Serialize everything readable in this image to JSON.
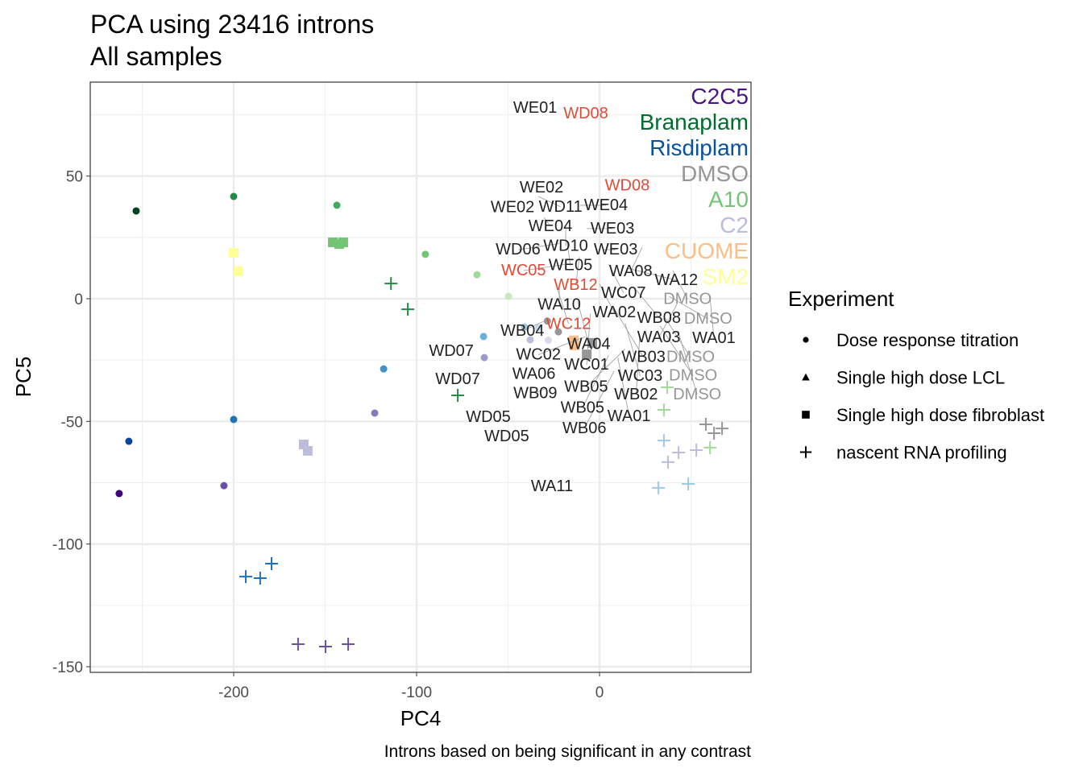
{
  "chart_data": {
    "type": "scatter",
    "title": "PCA using 23416 introns",
    "subtitle": "All samples",
    "caption": "Introns based on being significant in any contrast",
    "xlabel": "PC4",
    "ylabel": "PC5",
    "xlim": [
      -278.4,
      82.8
    ],
    "ylim": [
      -152.3,
      88.3
    ],
    "xticks": [
      -200,
      -100,
      0
    ],
    "yticks": [
      50,
      0,
      -50,
      -100,
      -150
    ],
    "grid": true,
    "legend": {
      "title": "Experiment",
      "placement": "right",
      "entries": [
        {
          "label": "Dose response titration",
          "shape": "circle"
        },
        {
          "label": "Single high dose LCL",
          "shape": "triangle"
        },
        {
          "label": "Single high dose fibroblast",
          "shape": "square"
        },
        {
          "label": "nascent RNA profiling",
          "shape": "plus"
        }
      ]
    },
    "treatment_annotations": [
      {
        "label": "C2C5",
        "color": "#4a1486"
      },
      {
        "label": "Branaplam",
        "color": "#006d2c"
      },
      {
        "label": "Risdiplam",
        "color": "#08519c"
      },
      {
        "label": "DMSO",
        "color": "#969696"
      },
      {
        "label": "A10",
        "color": "#74c476"
      },
      {
        "label": "C2",
        "color": "#bcbddc"
      },
      {
        "label": "CUOME",
        "color": "#fdbe85"
      },
      {
        "label": "SM2",
        "color": "#ffff99"
      }
    ],
    "points": [
      {
        "x": -253.3,
        "y": 35.8,
        "shape": "circle",
        "color": "#00441b"
      },
      {
        "x": -200,
        "y": 41.7,
        "shape": "circle",
        "color": "#238b45"
      },
      {
        "x": -143.6,
        "y": 38.1,
        "shape": "circle",
        "color": "#41ab5d"
      },
      {
        "x": -95.2,
        "y": 18.1,
        "shape": "circle",
        "color": "#74c476"
      },
      {
        "x": -67,
        "y": 9.8,
        "shape": "circle",
        "color": "#a1d99b"
      },
      {
        "x": -49.8,
        "y": 1,
        "shape": "circle",
        "color": "#c7e9c0"
      },
      {
        "x": -262.6,
        "y": -79.4,
        "shape": "circle",
        "color": "#3f007d"
      },
      {
        "x": -257.3,
        "y": -58.1,
        "shape": "circle",
        "color": "#08459c"
      },
      {
        "x": -200,
        "y": -49.2,
        "shape": "circle",
        "color": "#2171b5"
      },
      {
        "x": -205.3,
        "y": -76.2,
        "shape": "circle",
        "color": "#6a51a3"
      },
      {
        "x": -118,
        "y": -28.6,
        "shape": "circle",
        "color": "#4292c6"
      },
      {
        "x": -122.9,
        "y": -46.6,
        "shape": "circle",
        "color": "#807dba"
      },
      {
        "x": -63.4,
        "y": -15.4,
        "shape": "circle",
        "color": "#6baed6"
      },
      {
        "x": -63,
        "y": -24,
        "shape": "circle",
        "color": "#9e9ac8"
      },
      {
        "x": -41,
        "y": -11.5,
        "shape": "circle",
        "color": "#9ecae1"
      },
      {
        "x": -37.9,
        "y": -16.7,
        "shape": "circle",
        "color": "#bcbddc"
      },
      {
        "x": -33.5,
        "y": -11.8,
        "shape": "circle",
        "color": "#c6dbef"
      },
      {
        "x": -28,
        "y": -16.9,
        "shape": "circle",
        "color": "#dadaeb"
      },
      {
        "x": -28.5,
        "y": -9.1,
        "shape": "circle",
        "color": "#969696"
      },
      {
        "x": -22.5,
        "y": -13.5,
        "shape": "circle",
        "color": "#969696"
      },
      {
        "x": -200,
        "y": 18.7,
        "shape": "square",
        "color": "#ffff99"
      },
      {
        "x": -197.4,
        "y": 11.2,
        "shape": "square",
        "color": "#ffff99"
      },
      {
        "x": -145.8,
        "y": 23,
        "shape": "square",
        "color": "#74c476"
      },
      {
        "x": -142.3,
        "y": 22.3,
        "shape": "square",
        "color": "#74c476"
      },
      {
        "x": -140.1,
        "y": 23,
        "shape": "square",
        "color": "#74c476"
      },
      {
        "x": -161.7,
        "y": -59.4,
        "shape": "square",
        "color": "#bcbddc"
      },
      {
        "x": -159.5,
        "y": -62,
        "shape": "square",
        "color": "#bcbddc"
      },
      {
        "x": -14.1,
        "y": -17,
        "shape": "square",
        "color": "#fdbe85"
      },
      {
        "x": -13.8,
        "y": -19,
        "shape": "square",
        "color": "#fdbe85"
      },
      {
        "x": -7,
        "y": -22.7,
        "shape": "square",
        "color": "#969696"
      },
      {
        "x": -4,
        "y": -18,
        "shape": "square",
        "color": "#969696"
      },
      {
        "x": -114,
        "y": 6.2,
        "shape": "plus",
        "color": "#238b45"
      },
      {
        "x": -104.8,
        "y": -4.3,
        "shape": "plus",
        "color": "#238b45"
      },
      {
        "x": -77.5,
        "y": -39.4,
        "shape": "plus",
        "color": "#238b45"
      },
      {
        "x": -193.4,
        "y": -113.3,
        "shape": "plus",
        "color": "#2171b5"
      },
      {
        "x": -185.5,
        "y": -113.9,
        "shape": "plus",
        "color": "#2171b5"
      },
      {
        "x": -179.3,
        "y": -108,
        "shape": "plus",
        "color": "#2171b5"
      },
      {
        "x": -164.8,
        "y": -140.8,
        "shape": "plus",
        "color": "#6a51a3"
      },
      {
        "x": -149.8,
        "y": -141.8,
        "shape": "plus",
        "color": "#6a51a3"
      },
      {
        "x": -137.4,
        "y": -140.8,
        "shape": "plus",
        "color": "#6a51a3"
      },
      {
        "x": 37,
        "y": -36.1,
        "shape": "plus",
        "color": "#a1d99b"
      },
      {
        "x": 35.2,
        "y": -45.3,
        "shape": "plus",
        "color": "#a1d99b"
      },
      {
        "x": 60.4,
        "y": -60.7,
        "shape": "plus",
        "color": "#a1d99b"
      },
      {
        "x": 35.2,
        "y": -57.8,
        "shape": "plus",
        "color": "#9ecae1"
      },
      {
        "x": 32.2,
        "y": -77.1,
        "shape": "plus",
        "color": "#9ecae1"
      },
      {
        "x": 48.5,
        "y": -75.5,
        "shape": "plus",
        "color": "#9ecae1"
      },
      {
        "x": 43.2,
        "y": -62.7,
        "shape": "plus",
        "color": "#bcbddc"
      },
      {
        "x": 52.9,
        "y": -61.7,
        "shape": "plus",
        "color": "#bcbddc"
      },
      {
        "x": 37.4,
        "y": -66.6,
        "shape": "plus",
        "color": "#bcbddc"
      },
      {
        "x": 58.1,
        "y": -51.2,
        "shape": "plus",
        "color": "#969696"
      },
      {
        "x": 62.6,
        "y": -54.8,
        "shape": "plus",
        "color": "#969696"
      },
      {
        "x": 67,
        "y": -52.9,
        "shape": "plus",
        "color": "#969696"
      }
    ],
    "labels": [
      {
        "text": "WE01",
        "x": -35.2,
        "y": 77.8,
        "color": "#222222"
      },
      {
        "text": "WD08",
        "x": -7.5,
        "y": 75.5,
        "color": "#e34a33"
      },
      {
        "text": "WE02",
        "x": -31.7,
        "y": 45.3,
        "color": "#222222"
      },
      {
        "text": "WE02",
        "x": -50.2,
        "y": 40,
        "color": "#222222"
      },
      {
        "text": "WD11",
        "x": -33.5,
        "y": 41.7,
        "color": "#222222"
      },
      {
        "text": "WE04",
        "x": -10.6,
        "y": 38.1,
        "color": "#222222"
      },
      {
        "text": "WD08",
        "x": 16.7,
        "y": 45.6,
        "color": "#e34a33"
      },
      {
        "text": "WE04",
        "x": -30.4,
        "y": 33.2,
        "color": "#222222"
      },
      {
        "text": "WD10",
        "x": -18.5,
        "y": 29.9,
        "color": "#222222"
      },
      {
        "text": "WE03",
        "x": -7,
        "y": 28.6,
        "color": "#222222"
      },
      {
        "text": "WE05",
        "x": -18,
        "y": 24,
        "color": "#222222"
      },
      {
        "text": "WD06",
        "x": -22,
        "y": 22.5,
        "color": "#222222"
      },
      {
        "text": "WE03",
        "x": 1.8,
        "y": 20,
        "color": "#222222"
      },
      {
        "text": "WA08",
        "x": 23.3,
        "y": 21,
        "color": "#222222"
      },
      {
        "text": "WB12",
        "x": -11,
        "y": 17,
        "color": "#e34a33"
      },
      {
        "text": "WC05",
        "x": -19,
        "y": 14,
        "color": "#e34a33"
      },
      {
        "text": "WC07",
        "x": 5,
        "y": 14,
        "color": "#222222"
      },
      {
        "text": "WA12",
        "x": 15,
        "y": 12.5,
        "color": "#222222"
      },
      {
        "text": "DMSO",
        "x": 40,
        "y": 11.5,
        "color": "#969696"
      },
      {
        "text": "WA10",
        "x": -22,
        "y": 6,
        "color": "#222222"
      },
      {
        "text": "WA02",
        "x": 0,
        "y": 6,
        "color": "#222222"
      },
      {
        "text": "WB08",
        "x": 19,
        "y": 4.5,
        "color": "#222222"
      },
      {
        "text": "WC12",
        "x": -23,
        "y": 4,
        "color": "#e34a33"
      },
      {
        "text": "DMSO",
        "x": 38,
        "y": 1,
        "color": "#969696"
      },
      {
        "text": "WA01",
        "x": 60.4,
        "y": 0.7,
        "color": "#222222"
      },
      {
        "text": "WA04",
        "x": -12,
        "y": -1,
        "color": "#222222"
      },
      {
        "text": "WA03",
        "x": 42.3,
        "y": -2.3,
        "color": "#222222"
      },
      {
        "text": "WB03",
        "x": 8,
        "y": -4,
        "color": "#222222"
      },
      {
        "text": "WC01",
        "x": -5,
        "y": -6,
        "color": "#222222"
      },
      {
        "text": "WB04",
        "x": -30,
        "y": -9,
        "color": "#222222"
      },
      {
        "text": "DMSO",
        "x": 36,
        "y": -8,
        "color": "#969696"
      },
      {
        "text": "WC03",
        "x": 14,
        "y": -10,
        "color": "#222222"
      },
      {
        "text": "DMSO",
        "x": 33,
        "y": -11,
        "color": "#969696"
      },
      {
        "text": "DMSO",
        "x": 43,
        "y": -13.5,
        "color": "#969696"
      },
      {
        "text": "WB02",
        "x": 22,
        "y": -15,
        "color": "#222222"
      },
      {
        "text": "WC02",
        "x": -8,
        "y": -15.5,
        "color": "#222222"
      },
      {
        "text": "WB05",
        "x": 14,
        "y": -20.5,
        "color": "#222222"
      },
      {
        "text": "WB05",
        "x": 5,
        "y": -23,
        "color": "#222222"
      },
      {
        "text": "WA01",
        "x": 10,
        "y": -24,
        "color": "#222222"
      },
      {
        "text": "WD07",
        "x": -81,
        "y": -21.3,
        "color": "#222222"
      },
      {
        "text": "WD07",
        "x": -77.5,
        "y": -32.8,
        "color": "#222222"
      },
      {
        "text": "WA06",
        "x": -37.4,
        "y": -30.2,
        "color": "#222222"
      },
      {
        "text": "WB06",
        "x": 7.9,
        "y": -29.5,
        "color": "#222222"
      },
      {
        "text": "WB09",
        "x": -29,
        "y": -36.4,
        "color": "#222222"
      },
      {
        "text": "WD05",
        "x": -60.8,
        "y": -48.3,
        "color": "#222222"
      },
      {
        "text": "WD05",
        "x": -50.7,
        "y": -52.9,
        "color": "#222222"
      },
      {
        "text": "WA11",
        "x": -26,
        "y": -76.5,
        "color": "#222222"
      }
    ]
  }
}
